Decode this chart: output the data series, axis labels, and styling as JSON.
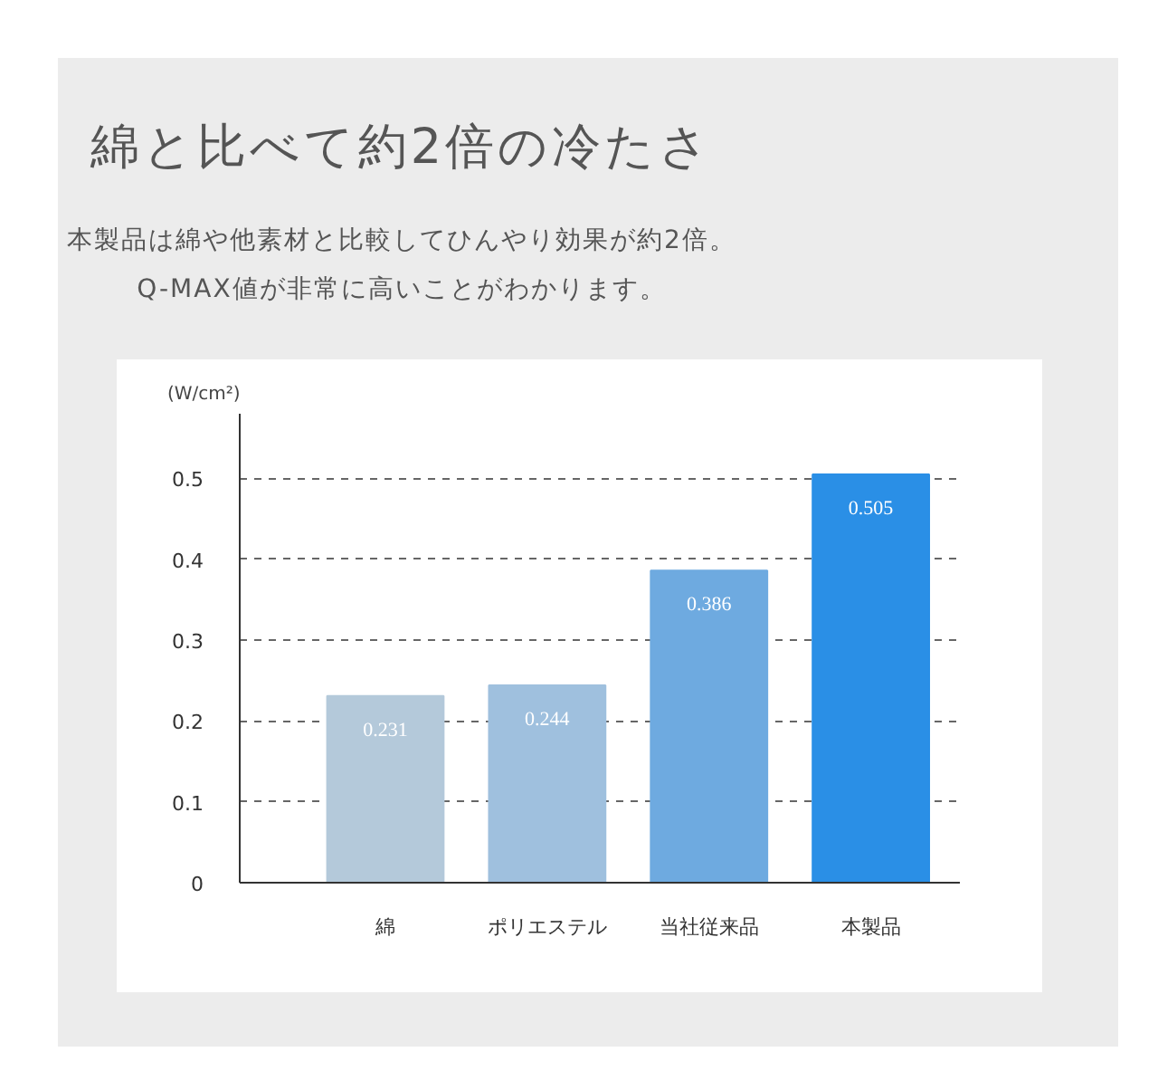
{
  "chart_data": {
    "type": "bar",
    "title": "綿と比べて約2倍の冷たさ",
    "subtitle": "本製品は綿や他素材と比較してひんやり効果が約2倍。\nQ-MAX値が非常に高いことがわかります。",
    "ylabel": "(W/cm²)",
    "categories": [
      "綿",
      "ポリエステル",
      "当社従来品",
      "本製品"
    ],
    "values": [
      0.231,
      0.244,
      0.386,
      0.505
    ],
    "colors": [
      "#b4c9da",
      "#9fc0de",
      "#6eaae0",
      "#2a8fe6"
    ],
    "ylim": [
      0,
      0.58
    ],
    "yticks": [
      0,
      0.1,
      0.2,
      0.3,
      0.4,
      0.5
    ],
    "grid": "y",
    "data_labels": true
  }
}
